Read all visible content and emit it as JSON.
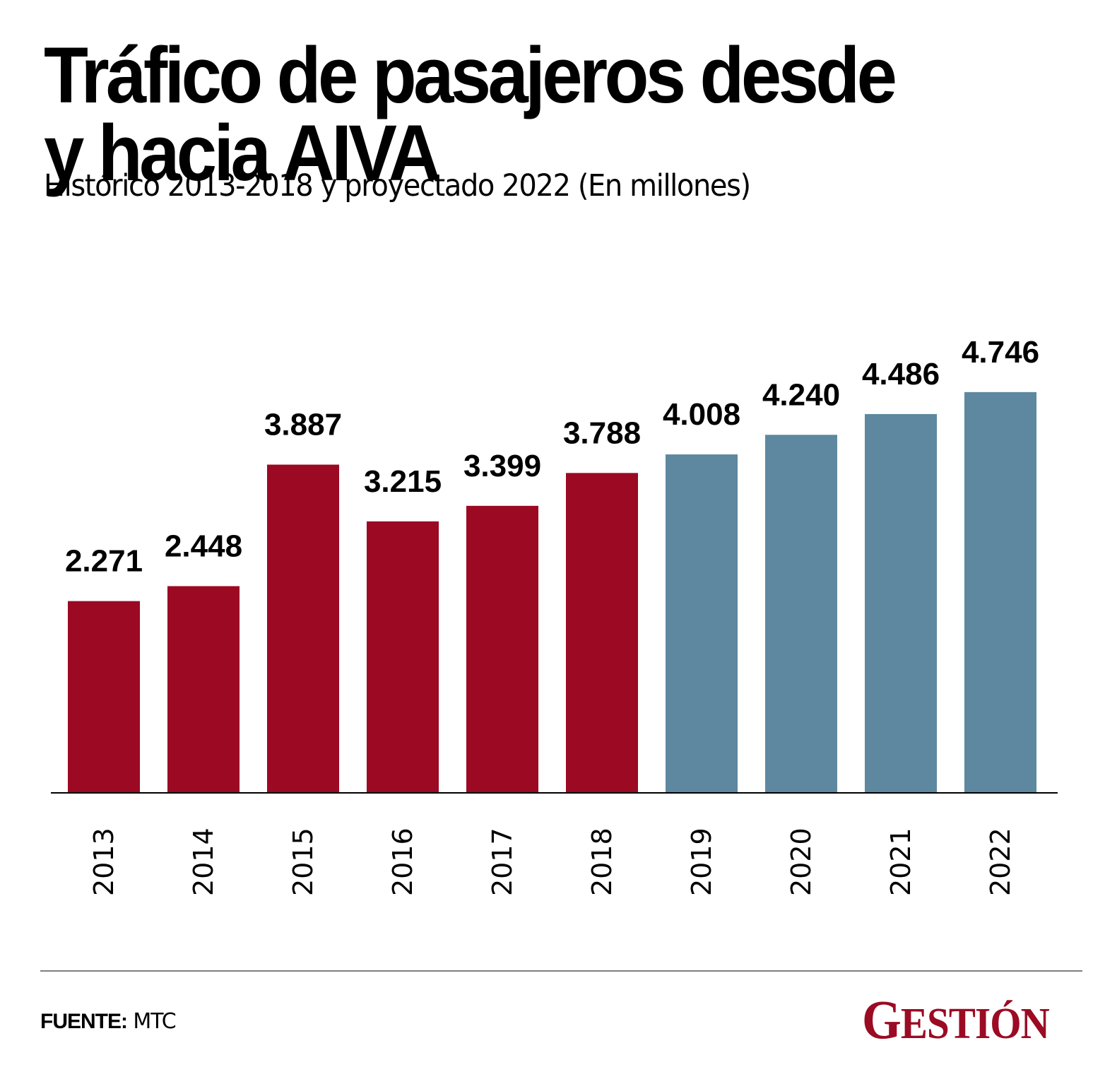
{
  "title_lines": [
    "Tráfico de pasajeros desde",
    "y hacia AIVA"
  ],
  "subtitle": "Histórico 2013-2018 y proyectado 2022 (En millones)",
  "footer": {
    "source_key": "FUENTE:",
    "source_value": "MTC",
    "logo_first": "G",
    "logo_rest": "ESTIÓN"
  },
  "colors": {
    "historical": "#9b0923",
    "projected": "#5d889f",
    "axis": "#000000",
    "divider": "#808080",
    "brand": "#9b0b23"
  },
  "chart_data": {
    "type": "bar",
    "title": "Tráfico de pasajeros desde y hacia AIVA",
    "subtitle": "Histórico 2013-2018 y proyectado 2022 (En millones)",
    "xlabel": "",
    "ylabel": "",
    "ylim": [
      0,
      4.746
    ],
    "grid": false,
    "legend": "none",
    "categories": [
      "2013",
      "2014",
      "2015",
      "2016",
      "2017",
      "2018",
      "2019",
      "2020",
      "2021",
      "2022"
    ],
    "values": [
      2.271,
      2.448,
      3.887,
      3.215,
      3.399,
      3.788,
      4.008,
      4.24,
      4.486,
      4.746
    ],
    "value_labels": [
      "2.271",
      "2.448",
      "3.887",
      "3.215",
      "3.399",
      "3.788",
      "4.008",
      "4.240",
      "4.486",
      "4.746"
    ],
    "series_kind": [
      "historical",
      "historical",
      "historical",
      "historical",
      "historical",
      "historical",
      "projected",
      "projected",
      "projected",
      "projected"
    ]
  }
}
